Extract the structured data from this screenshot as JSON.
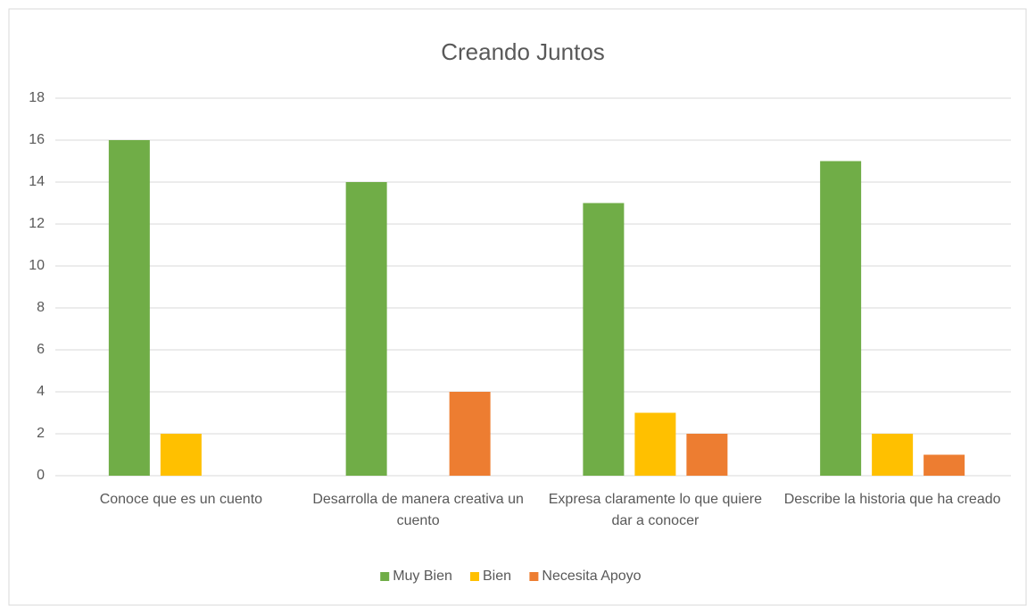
{
  "chart_data": {
    "type": "bar",
    "title": "Creando Juntos",
    "categories": [
      "Conoce que es un cuento",
      "Desarrolla de manera creativa un cuento",
      "Expresa claramente lo que quiere dar a conocer",
      "Describe la historia que ha creado"
    ],
    "series": [
      {
        "name": "Muy Bien",
        "color": "#70ad47",
        "values": [
          16,
          14,
          13,
          15
        ]
      },
      {
        "name": "Bien",
        "color": "#ffc000",
        "values": [
          2,
          0,
          3,
          2
        ]
      },
      {
        "name": "Necesita Apoyo",
        "color": "#ed7d31",
        "values": [
          0,
          4,
          2,
          1
        ]
      }
    ],
    "ylim": [
      0,
      18
    ],
    "yticks": [
      0,
      2,
      4,
      6,
      8,
      10,
      12,
      14,
      16,
      18
    ],
    "grid": true,
    "legend": "bottom"
  }
}
